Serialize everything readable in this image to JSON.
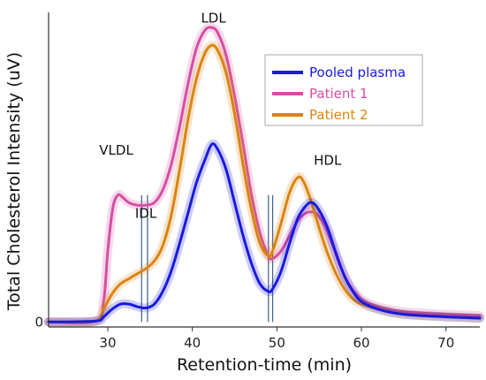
{
  "chart_data": {
    "type": "line",
    "xlabel": "Retention-time (min)",
    "ylabel": "Total Cholesterol Intensity (uV)",
    "xlim": [
      23,
      74
    ],
    "ylim": [
      -0.02,
      1.22
    ],
    "x_ticks": [
      30,
      40,
      50,
      60,
      70
    ],
    "y_ticks": [
      0
    ],
    "grid": false,
    "legend_position": "top-right",
    "annotations": [
      {
        "text": "VLDL",
        "x": 31.0,
        "y": 0.66
      },
      {
        "text": "IDL",
        "x": 34.5,
        "y": 0.41
      },
      {
        "text": "LDL",
        "x": 42.5,
        "y": 1.18
      },
      {
        "text": "HDL",
        "x": 56.0,
        "y": 0.62
      }
    ],
    "markers": [
      34.0,
      34.7,
      49.0,
      49.5
    ],
    "series": [
      {
        "name": "Pooled plasma",
        "color": "#1a1adc",
        "x": [
          23,
          28.5,
          29.5,
          30.5,
          31.5,
          32.5,
          33.5,
          34.5,
          35.5,
          36.5,
          37.5,
          38.5,
          39.5,
          40.5,
          41.5,
          42.3,
          43,
          44,
          45,
          46,
          47,
          48,
          49,
          49.5,
          50.5,
          51.5,
          52.5,
          53.5,
          54.2,
          55,
          56,
          57,
          58,
          59,
          60,
          62,
          65,
          70,
          74
        ],
        "y": [
          0.0,
          0.003,
          0.02,
          0.05,
          0.07,
          0.07,
          0.06,
          0.055,
          0.07,
          0.12,
          0.2,
          0.31,
          0.43,
          0.55,
          0.64,
          0.7,
          0.68,
          0.6,
          0.47,
          0.34,
          0.23,
          0.15,
          0.12,
          0.13,
          0.2,
          0.31,
          0.41,
          0.46,
          0.47,
          0.44,
          0.37,
          0.27,
          0.18,
          0.12,
          0.08,
          0.05,
          0.03,
          0.02,
          0.015
        ]
      },
      {
        "name": "Patient 1",
        "color": "#d44fa3",
        "x": [
          23,
          28.5,
          29.5,
          30,
          30.6,
          31.2,
          31.8,
          32.5,
          33.5,
          34.5,
          35.5,
          36.5,
          37.5,
          38.5,
          39.5,
          40.5,
          41.5,
          42.3,
          43,
          44,
          45,
          46,
          47,
          48,
          49,
          49.5,
          50.5,
          51.5,
          52.5,
          53.5,
          54.5,
          55.5,
          56.5,
          57.5,
          58.5,
          60,
          62,
          65,
          70,
          74
        ],
        "y": [
          0.0,
          0.003,
          0.08,
          0.28,
          0.45,
          0.5,
          0.49,
          0.47,
          0.46,
          0.46,
          0.47,
          0.52,
          0.62,
          0.77,
          0.94,
          1.08,
          1.15,
          1.16,
          1.14,
          1.05,
          0.89,
          0.7,
          0.5,
          0.35,
          0.26,
          0.25,
          0.28,
          0.34,
          0.4,
          0.43,
          0.43,
          0.39,
          0.31,
          0.22,
          0.15,
          0.09,
          0.06,
          0.04,
          0.03,
          0.025
        ]
      },
      {
        "name": "Patient 2",
        "color": "#d98412",
        "x": [
          23,
          28.5,
          29.5,
          30.5,
          31.5,
          32.5,
          33.5,
          34.5,
          35.5,
          36.5,
          37.5,
          38.5,
          39.5,
          40.5,
          41.5,
          42.3,
          43,
          44,
          45,
          46,
          47,
          48,
          49,
          49.5,
          50.5,
          51.5,
          52.5,
          53.2,
          54,
          55,
          56,
          57,
          58,
          59,
          60,
          62,
          65,
          70,
          74
        ],
        "y": [
          0.0,
          0.003,
          0.05,
          0.11,
          0.15,
          0.17,
          0.19,
          0.21,
          0.24,
          0.3,
          0.42,
          0.6,
          0.8,
          0.96,
          1.06,
          1.09,
          1.07,
          0.98,
          0.82,
          0.62,
          0.44,
          0.31,
          0.26,
          0.28,
          0.39,
          0.51,
          0.57,
          0.55,
          0.48,
          0.37,
          0.27,
          0.19,
          0.13,
          0.09,
          0.07,
          0.05,
          0.03,
          0.02,
          0.015
        ]
      }
    ]
  }
}
